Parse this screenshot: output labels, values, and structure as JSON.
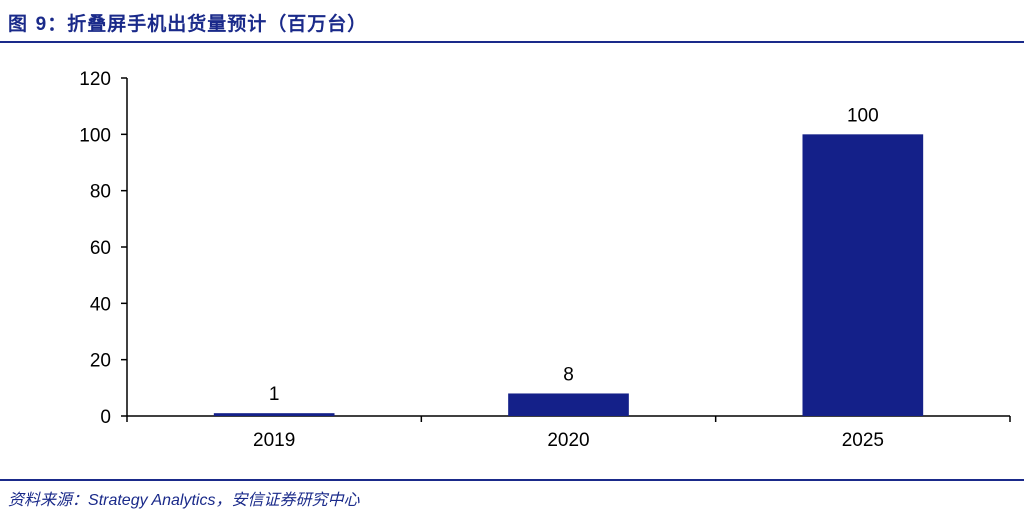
{
  "header": {
    "figure_prefix": "图 ",
    "figure_number": "9",
    "title_text": "：折叠屏手机出货量预计（百万台）"
  },
  "footer": {
    "source_prefix": "资料来源：",
    "source_name": "Strategy Analytics",
    "source_suffix": "，安信证券研究中心"
  },
  "colors": {
    "bar": "#142089",
    "accent": "#1a2a8a",
    "axis": "#000000"
  },
  "chart_data": {
    "type": "bar",
    "title": "折叠屏手机出货量预计（百万台）",
    "categories": [
      "2019",
      "2020",
      "2025"
    ],
    "values": [
      1,
      8,
      100
    ],
    "data_labels": [
      "1",
      "8",
      "100"
    ],
    "ylim": [
      0,
      120
    ],
    "yticks": [
      0,
      20,
      40,
      60,
      80,
      100,
      120
    ],
    "xlabel": "",
    "ylabel": "",
    "grid": false,
    "legend": "none"
  }
}
